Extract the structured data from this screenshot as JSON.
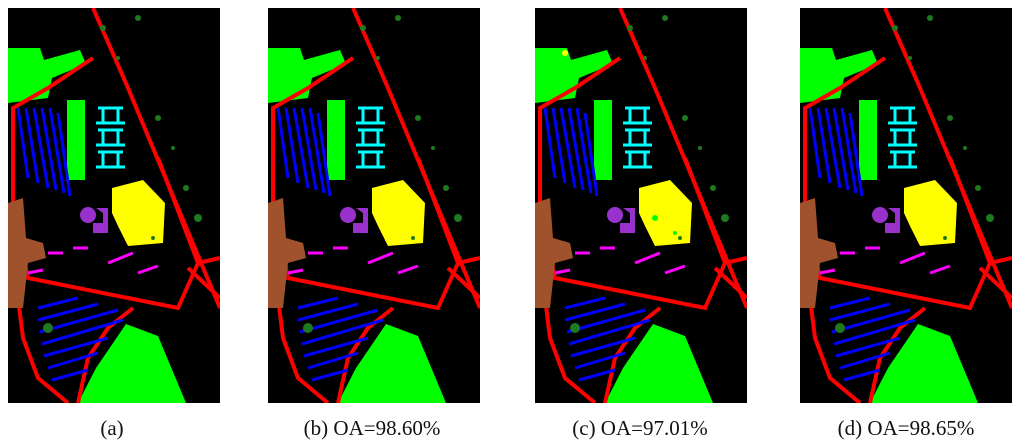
{
  "figure": {
    "panels": [
      {
        "caption": "(a)"
      },
      {
        "caption": "(b) OA=98.60%"
      },
      {
        "caption": "(c) OA=97.01%"
      },
      {
        "caption": "(d) OA=98.65%"
      }
    ]
  }
}
